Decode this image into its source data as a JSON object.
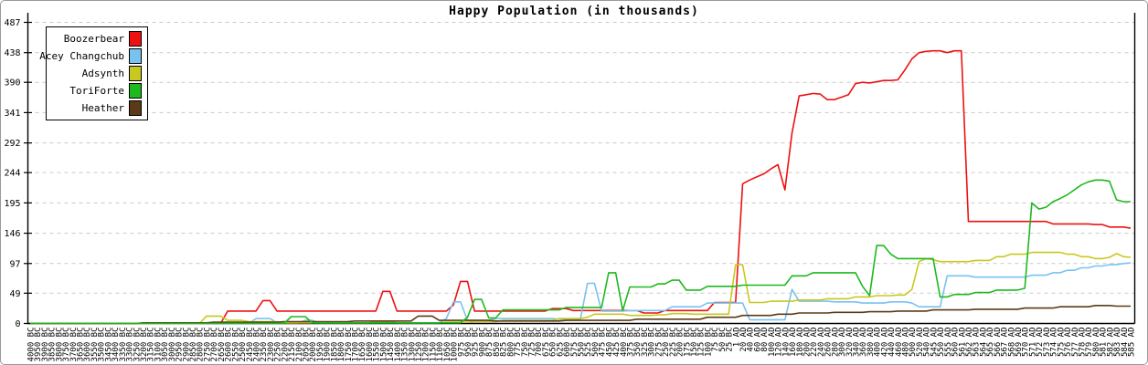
{
  "title": "Happy Population (in thousands)",
  "chart_data": {
    "type": "line",
    "title": "Happy Population (in thousands)",
    "xlabel": "",
    "ylabel": "",
    "ylim": [
      0,
      487
    ],
    "y_ticks": [
      0,
      49,
      97,
      146,
      195,
      244,
      292,
      341,
      390,
      438,
      487
    ],
    "grid": "horizontal-dashed",
    "legend_position": "top-left",
    "x_categories": [
      "4000 BC",
      "3950 BC",
      "3900 BC",
      "3850 BC",
      "3800 BC",
      "3750 BC",
      "3700 BC",
      "3650 BC",
      "3600 BC",
      "3550 BC",
      "3500 BC",
      "3450 BC",
      "3400 BC",
      "3350 BC",
      "3300 BC",
      "3250 BC",
      "3200 BC",
      "3150 BC",
      "3100 BC",
      "3050 BC",
      "3000 BC",
      "2950 BC",
      "2900 BC",
      "2850 BC",
      "2800 BC",
      "2750 BC",
      "2700 BC",
      "2650 BC",
      "2600 BC",
      "2550 BC",
      "2500 BC",
      "2450 BC",
      "2400 BC",
      "2350 BC",
      "2300 BC",
      "2250 BC",
      "2200 BC",
      "2150 BC",
      "2100 BC",
      "2050 BC",
      "2000 BC",
      "1950 BC",
      "1900 BC",
      "1850 BC",
      "1800 BC",
      "1750 BC",
      "1700 BC",
      "1650 BC",
      "1600 BC",
      "1550 BC",
      "1500 BC",
      "1450 BC",
      "1400 BC",
      "1350 BC",
      "1300 BC",
      "1250 BC",
      "1200 BC",
      "1150 BC",
      "1100 BC",
      "1050 BC",
      "1000 BC",
      "975 BC",
      "950 BC",
      "925 BC",
      "900 BC",
      "875 BC",
      "850 BC",
      "825 BC",
      "800 BC",
      "775 BC",
      "750 BC",
      "725 BC",
      "700 BC",
      "675 BC",
      "650 BC",
      "625 BC",
      "600 BC",
      "575 BC",
      "550 BC",
      "525 BC",
      "500 BC",
      "475 BC",
      "450 BC",
      "425 BC",
      "400 BC",
      "375 BC",
      "350 BC",
      "325 BC",
      "300 BC",
      "275 BC",
      "250 BC",
      "225 BC",
      "200 BC",
      "175 BC",
      "150 BC",
      "125 BC",
      "100 BC",
      "75 BC",
      "50 BC",
      "25 BC",
      "1 AD",
      "20 AD",
      "40 AD",
      "60 AD",
      "80 AD",
      "100 AD",
      "120 AD",
      "140 AD",
      "160 AD",
      "180 AD",
      "200 AD",
      "220 AD",
      "240 AD",
      "260 AD",
      "280 AD",
      "300 AD",
      "320 AD",
      "340 AD",
      "360 AD",
      "380 AD",
      "400 AD",
      "420 AD",
      "440 AD",
      "460 AD",
      "480 AD",
      "500 AD",
      "520 AD",
      "540 AD",
      "545 AD",
      "550 AD",
      "555 AD",
      "560 AD",
      "561 AD",
      "562 AD",
      "563 AD",
      "564 AD",
      "565 AD",
      "566 AD",
      "567 AD",
      "568 AD",
      "569 AD",
      "570 AD",
      "571 AD",
      "572 AD",
      "573 AD",
      "574 AD",
      "575 AD",
      "576 AD",
      "577 AD",
      "578 AD",
      "579 AD",
      "580 AD",
      "581 AD",
      "582 AD",
      "583 AD",
      "584 AD",
      "585 AD"
    ],
    "series": [
      {
        "name": "Boozerbear",
        "color": "#ee1111",
        "values": [
          0,
          0,
          0,
          0,
          0,
          0,
          0,
          0,
          0,
          0,
          0,
          0,
          0,
          0,
          0,
          0,
          0,
          0,
          0,
          0,
          0,
          0,
          0,
          0,
          0,
          0,
          0,
          0,
          20,
          20,
          20,
          20,
          20,
          37,
          37,
          20,
          20,
          20,
          20,
          20,
          20,
          20,
          20,
          20,
          20,
          20,
          20,
          20,
          20,
          20,
          52,
          52,
          20,
          20,
          20,
          20,
          20,
          20,
          20,
          20,
          30,
          68,
          68,
          20,
          20,
          20,
          20,
          20,
          20,
          20,
          20,
          20,
          20,
          20,
          24,
          24,
          24,
          21,
          21,
          21,
          21,
          21,
          21,
          21,
          21,
          21,
          21,
          17,
          17,
          17,
          21,
          21,
          21,
          21,
          21,
          21,
          21,
          34,
          34,
          34,
          34,
          226,
          232,
          237,
          242,
          250,
          257,
          216,
          308,
          368,
          370,
          372,
          371,
          362,
          362,
          366,
          370,
          388,
          390,
          389,
          391,
          393,
          393,
          394,
          410,
          428,
          438,
          440,
          441,
          441,
          438,
          441,
          441,
          165,
          165,
          165,
          165,
          165,
          165,
          165,
          165,
          165,
          165,
          165,
          165,
          161,
          161,
          161,
          161,
          161,
          161,
          160,
          160,
          156,
          156,
          156,
          154
        ]
      },
      {
        "name": "Acey Changchub",
        "color": "#79c2ef",
        "values": [
          0,
          0,
          0,
          0,
          0,
          0,
          0,
          0,
          0,
          0,
          0,
          0,
          0,
          0,
          0,
          0,
          0,
          0,
          0,
          0,
          0,
          0,
          0,
          0,
          0,
          0,
          0,
          0,
          0,
          0,
          0,
          0,
          8,
          8,
          8,
          1,
          1,
          1,
          1,
          5,
          5,
          1,
          1,
          1,
          1,
          1,
          1,
          1,
          1,
          1,
          1,
          1,
          1,
          1,
          1,
          1,
          1,
          1,
          1,
          8,
          35,
          35,
          5,
          5,
          5,
          5,
          8,
          8,
          8,
          8,
          8,
          8,
          8,
          8,
          8,
          7,
          7,
          7,
          7,
          65,
          65,
          20,
          20,
          20,
          20,
          21,
          21,
          21,
          21,
          21,
          21,
          27,
          27,
          27,
          27,
          27,
          33,
          33,
          33,
          33,
          33,
          33,
          6,
          6,
          6,
          6,
          6,
          6,
          55,
          36,
          36,
          36,
          36,
          36,
          35,
          35,
          35,
          35,
          33,
          33,
          33,
          33,
          35,
          35,
          35,
          33,
          27,
          27,
          27,
          27,
          77,
          77,
          77,
          77,
          75,
          75,
          75,
          75,
          75,
          75,
          75,
          75,
          78,
          78,
          78,
          82,
          82,
          86,
          86,
          90,
          90,
          93,
          93,
          95,
          95,
          97,
          98
        ]
      },
      {
        "name": "Adsynth",
        "color": "#c8c820",
        "values": [
          0,
          0,
          0,
          0,
          0,
          0,
          0,
          0,
          0,
          0,
          0,
          0,
          0,
          0,
          0,
          0,
          0,
          0,
          0,
          0,
          0,
          0,
          0,
          0,
          0,
          12,
          12,
          12,
          5,
          5,
          5,
          3,
          3,
          3,
          3,
          3,
          1,
          1,
          1,
          1,
          1,
          1,
          1,
          1,
          1,
          1,
          1,
          1,
          1,
          3,
          3,
          3,
          1,
          1,
          1,
          1,
          1,
          1,
          1,
          2,
          2,
          2,
          2,
          3,
          3,
          3,
          3,
          5,
          5,
          5,
          5,
          5,
          5,
          5,
          5,
          8,
          8,
          8,
          8,
          10,
          15,
          15,
          15,
          15,
          15,
          13,
          13,
          13,
          13,
          14,
          14,
          16,
          16,
          16,
          15,
          15,
          15,
          15,
          15,
          15,
          95,
          95,
          34,
          34,
          34,
          36,
          36,
          36,
          36,
          38,
          38,
          38,
          38,
          40,
          40,
          40,
          40,
          43,
          43,
          43,
          45,
          45,
          45,
          46,
          46,
          55,
          100,
          105,
          103,
          100,
          100,
          100,
          100,
          100,
          102,
          102,
          102,
          108,
          108,
          112,
          112,
          112,
          115,
          115,
          115,
          115,
          115,
          112,
          112,
          108,
          108,
          105,
          105,
          107,
          113,
          108,
          107
        ]
      },
      {
        "name": "ToriForte",
        "color": "#1db91d",
        "values": [
          0,
          0,
          0,
          0,
          0,
          0,
          0,
          0,
          0,
          0,
          0,
          0,
          0,
          0,
          0,
          0,
          0,
          0,
          0,
          0,
          0,
          0,
          0,
          0,
          0,
          0,
          0,
          0,
          0,
          0,
          0,
          0,
          0,
          0,
          0,
          0,
          0,
          11,
          11,
          11,
          1,
          1,
          1,
          1,
          1,
          1,
          1,
          1,
          1,
          1,
          1,
          1,
          1,
          1,
          1,
          1,
          1,
          1,
          1,
          1,
          1,
          1,
          10,
          39,
          39,
          9,
          9,
          22,
          22,
          22,
          22,
          22,
          22,
          22,
          22,
          22,
          26,
          26,
          26,
          26,
          26,
          26,
          82,
          82,
          21,
          59,
          59,
          59,
          59,
          64,
          64,
          70,
          70,
          54,
          54,
          54,
          60,
          60,
          60,
          60,
          60,
          62,
          62,
          62,
          62,
          62,
          62,
          62,
          77,
          77,
          77,
          82,
          82,
          82,
          82,
          82,
          82,
          82,
          60,
          45,
          126,
          126,
          112,
          105,
          105,
          105,
          105,
          105,
          105,
          43,
          43,
          47,
          47,
          47,
          50,
          50,
          50,
          54,
          54,
          54,
          54,
          57,
          195,
          185,
          188,
          197,
          202,
          208,
          216,
          224,
          229,
          232,
          232,
          230,
          200,
          197,
          197
        ]
      },
      {
        "name": "Heather",
        "color": "#5c3a17",
        "values": [
          0,
          0,
          0,
          0,
          0,
          0,
          0,
          0,
          0,
          0,
          0,
          0,
          0,
          0,
          0,
          0,
          1,
          1,
          1,
          1,
          1,
          1,
          1,
          1,
          1,
          1,
          2,
          2,
          2,
          2,
          2,
          2,
          2,
          2,
          2,
          2,
          3,
          3,
          3,
          3,
          3,
          3,
          3,
          3,
          3,
          3,
          4,
          4,
          4,
          4,
          4,
          4,
          4,
          4,
          4,
          12,
          12,
          12,
          5,
          5,
          5,
          5,
          5,
          5,
          5,
          5,
          4,
          4,
          4,
          4,
          4,
          4,
          4,
          4,
          4,
          4,
          5,
          5,
          5,
          5,
          5,
          5,
          5,
          5,
          5,
          5,
          7,
          7,
          7,
          7,
          7,
          7,
          7,
          7,
          7,
          7,
          10,
          10,
          10,
          10,
          10,
          13,
          13,
          13,
          13,
          13,
          15,
          15,
          15,
          17,
          17,
          17,
          17,
          17,
          18,
          18,
          18,
          18,
          18,
          19,
          19,
          19,
          19,
          20,
          20,
          20,
          20,
          20,
          22,
          22,
          22,
          22,
          22,
          22,
          23,
          23,
          23,
          23,
          23,
          23,
          23,
          25,
          25,
          25,
          25,
          25,
          27,
          27,
          27,
          27,
          27,
          29,
          29,
          29,
          28,
          28,
          28
        ]
      }
    ]
  }
}
